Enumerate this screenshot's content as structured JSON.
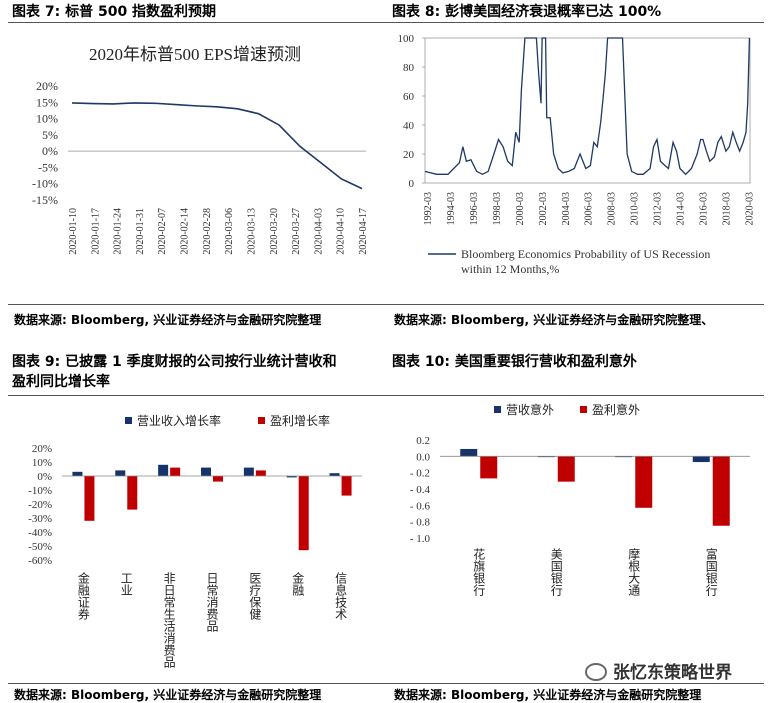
{
  "panels": {
    "p7": {
      "title": "图表 7:  标普 500 指数盈利预期",
      "source": "数据来源:  Bloomberg, 兴业证券经济与金融研究院整理"
    },
    "p8": {
      "title": "图表 8:  彭博美国经济衰退概率已达 100%",
      "source": "数据来源:  Bloomberg, 兴业证券经济与金融研究院整理、"
    },
    "p9": {
      "title_line1": "图表 9:  已披露 1 季度财报的公司按行业统计营收和",
      "title_line2": "盈利同比增长率",
      "source": "数据来源:  Bloomberg, 兴业证券经济与金融研究院整理"
    },
    "p10": {
      "title": "图表 10:  美国重要银行营收和盈利意外",
      "source": "数据来源:  Bloomberg, 兴业证券经济与金融研究院整理"
    }
  },
  "watermark": "张忆东策略世界",
  "colors": {
    "navy": "#16336b",
    "red": "#c00000",
    "line": "#1f3864",
    "text": "#333333"
  },
  "chart_data": [
    {
      "id": "eps",
      "type": "line",
      "title": "2020年标普500 EPS增速预测",
      "x": [
        "2020-01-10",
        "2020-01-17",
        "2020-01-24",
        "2020-01-31",
        "2020-02-07",
        "2020-02-14",
        "2020-02-21",
        "2020-02-28",
        "2020-03-06",
        "2020-03-13",
        "2020-03-20",
        "2020-03-27",
        "2020-04-03",
        "2020-04-10",
        "2020-04-17"
      ],
      "x_ticks": [
        "2020-01-10",
        "2020-01-17",
        "2020-01-24",
        "2020-01-31",
        "2020-02-07",
        "2020-02-14",
        "2020-02-28",
        "2020-03-06",
        "2020-03-13",
        "2020-03-20",
        "2020-03-27",
        "2020-04-03",
        "2020-04-10",
        "2020-04-17"
      ],
      "values": [
        14.8,
        14.6,
        14.5,
        14.8,
        14.7,
        14.3,
        13.9,
        13.6,
        13.0,
        11.5,
        8.0,
        1.5,
        -3.5,
        -8.5,
        -11.5
      ],
      "ylim": [
        -15,
        20
      ],
      "y_ticks": [
        -15,
        -10,
        -5,
        0,
        5,
        10,
        15,
        20
      ],
      "y_tick_labels": [
        "-15%",
        "-10%",
        "-5%",
        "0%",
        "5%",
        "10%",
        "15%",
        "20%"
      ]
    },
    {
      "id": "recession",
      "type": "line",
      "title": "",
      "series_name": "Bloomberg Economics Probability of US Recession within 12 Months,%",
      "x_ticks": [
        "1992-03",
        "1994-03",
        "1996-03",
        "1998-03",
        "2000-03",
        "2002-03",
        "2004-03",
        "2006-03",
        "2008-03",
        "2010-03",
        "2012-03",
        "2014-03",
        "2016-03",
        "2018-03",
        "2020-03"
      ],
      "x_range": [
        1992.0,
        2020.3
      ],
      "points": [
        [
          1992.0,
          8
        ],
        [
          1993.0,
          6
        ],
        [
          1994.0,
          6
        ],
        [
          1994.5,
          10
        ],
        [
          1995.0,
          14
        ],
        [
          1995.3,
          25
        ],
        [
          1995.6,
          15
        ],
        [
          1996.0,
          16
        ],
        [
          1996.5,
          8
        ],
        [
          1997.0,
          6
        ],
        [
          1997.5,
          8
        ],
        [
          1998.0,
          20
        ],
        [
          1998.4,
          30
        ],
        [
          1998.8,
          25
        ],
        [
          1999.2,
          15
        ],
        [
          1999.6,
          12
        ],
        [
          1999.9,
          35
        ],
        [
          2000.2,
          28
        ],
        [
          2000.4,
          65
        ],
        [
          2000.7,
          100
        ],
        [
          2001.0,
          100
        ],
        [
          2001.7,
          100
        ],
        [
          2001.9,
          75
        ],
        [
          2002.1,
          55
        ],
        [
          2002.2,
          100
        ],
        [
          2002.5,
          100
        ],
        [
          2002.6,
          45
        ],
        [
          2002.9,
          45
        ],
        [
          2003.2,
          20
        ],
        [
          2003.6,
          10
        ],
        [
          2004.0,
          7
        ],
        [
          2004.5,
          8
        ],
        [
          2005.0,
          10
        ],
        [
          2005.5,
          20
        ],
        [
          2006.0,
          10
        ],
        [
          2006.4,
          12
        ],
        [
          2006.7,
          28
        ],
        [
          2007.0,
          25
        ],
        [
          2007.3,
          42
        ],
        [
          2007.5,
          58
        ],
        [
          2007.7,
          75
        ],
        [
          2007.9,
          100
        ],
        [
          2008.5,
          100
        ],
        [
          2009.2,
          100
        ],
        [
          2009.4,
          60
        ],
        [
          2009.6,
          20
        ],
        [
          2010.0,
          8
        ],
        [
          2010.5,
          6
        ],
        [
          2011.0,
          6
        ],
        [
          2011.6,
          10
        ],
        [
          2011.9,
          25
        ],
        [
          2012.2,
          30
        ],
        [
          2012.5,
          15
        ],
        [
          2012.9,
          12
        ],
        [
          2013.2,
          10
        ],
        [
          2013.6,
          28
        ],
        [
          2013.9,
          22
        ],
        [
          2014.2,
          10
        ],
        [
          2014.7,
          6
        ],
        [
          2015.2,
          10
        ],
        [
          2015.7,
          20
        ],
        [
          2016.0,
          30
        ],
        [
          2016.2,
          30
        ],
        [
          2016.5,
          22
        ],
        [
          2016.8,
          15
        ],
        [
          2017.2,
          18
        ],
        [
          2017.5,
          28
        ],
        [
          2017.8,
          32
        ],
        [
          2018.2,
          22
        ],
        [
          2018.5,
          25
        ],
        [
          2018.8,
          35
        ],
        [
          2019.1,
          28
        ],
        [
          2019.4,
          22
        ],
        [
          2019.7,
          28
        ],
        [
          2019.95,
          35
        ],
        [
          2020.1,
          55
        ],
        [
          2020.25,
          100
        ]
      ],
      "ylim": [
        0,
        100
      ],
      "y_ticks": [
        0,
        20,
        40,
        60,
        80,
        100
      ]
    },
    {
      "id": "sector",
      "type": "bar",
      "categories": [
        "金融证券",
        "工业",
        "非日常生活消费品",
        "日常消费品",
        "医疗保健",
        "金融",
        "信息技术"
      ],
      "series": [
        {
          "name": "营业收入增长率",
          "color": "#16336b",
          "values": [
            3,
            4,
            8,
            6,
            6,
            -1,
            2
          ]
        },
        {
          "name": "盈利增长率",
          "color": "#c00000",
          "values": [
            -32,
            -24,
            6,
            -4,
            4,
            -53,
            -14
          ]
        }
      ],
      "ylim": [
        -60,
        20
      ],
      "y_ticks": [
        20,
        10,
        0,
        -10,
        -20,
        -30,
        -40,
        -50,
        -60
      ],
      "y_tick_labels": [
        "20%",
        "10%",
        "0%",
        "-10%",
        "-20%",
        "-30%",
        "-40%",
        "-50%",
        "-60%"
      ]
    },
    {
      "id": "banks",
      "type": "bar",
      "categories": [
        "花旗银行",
        "美国银行",
        "摩根大通",
        "富国银行"
      ],
      "series": [
        {
          "name": "营收意外",
          "color": "#16336b",
          "values": [
            0.09,
            0.0,
            -0.01,
            -0.07
          ]
        },
        {
          "name": "盈利意外",
          "color": "#c00000",
          "values": [
            -0.27,
            -0.31,
            -0.63,
            -0.85
          ]
        }
      ],
      "ylim": [
        -1.0,
        0.2
      ],
      "y_ticks": [
        0.2,
        0.0,
        -0.2,
        -0.4,
        -0.6,
        -0.8,
        -1.0
      ],
      "y_tick_labels": [
        "0.2",
        "0.0",
        "- 0.2",
        "- 0.4",
        "- 0.6",
        "- 0.8",
        "- 1.0"
      ]
    }
  ]
}
